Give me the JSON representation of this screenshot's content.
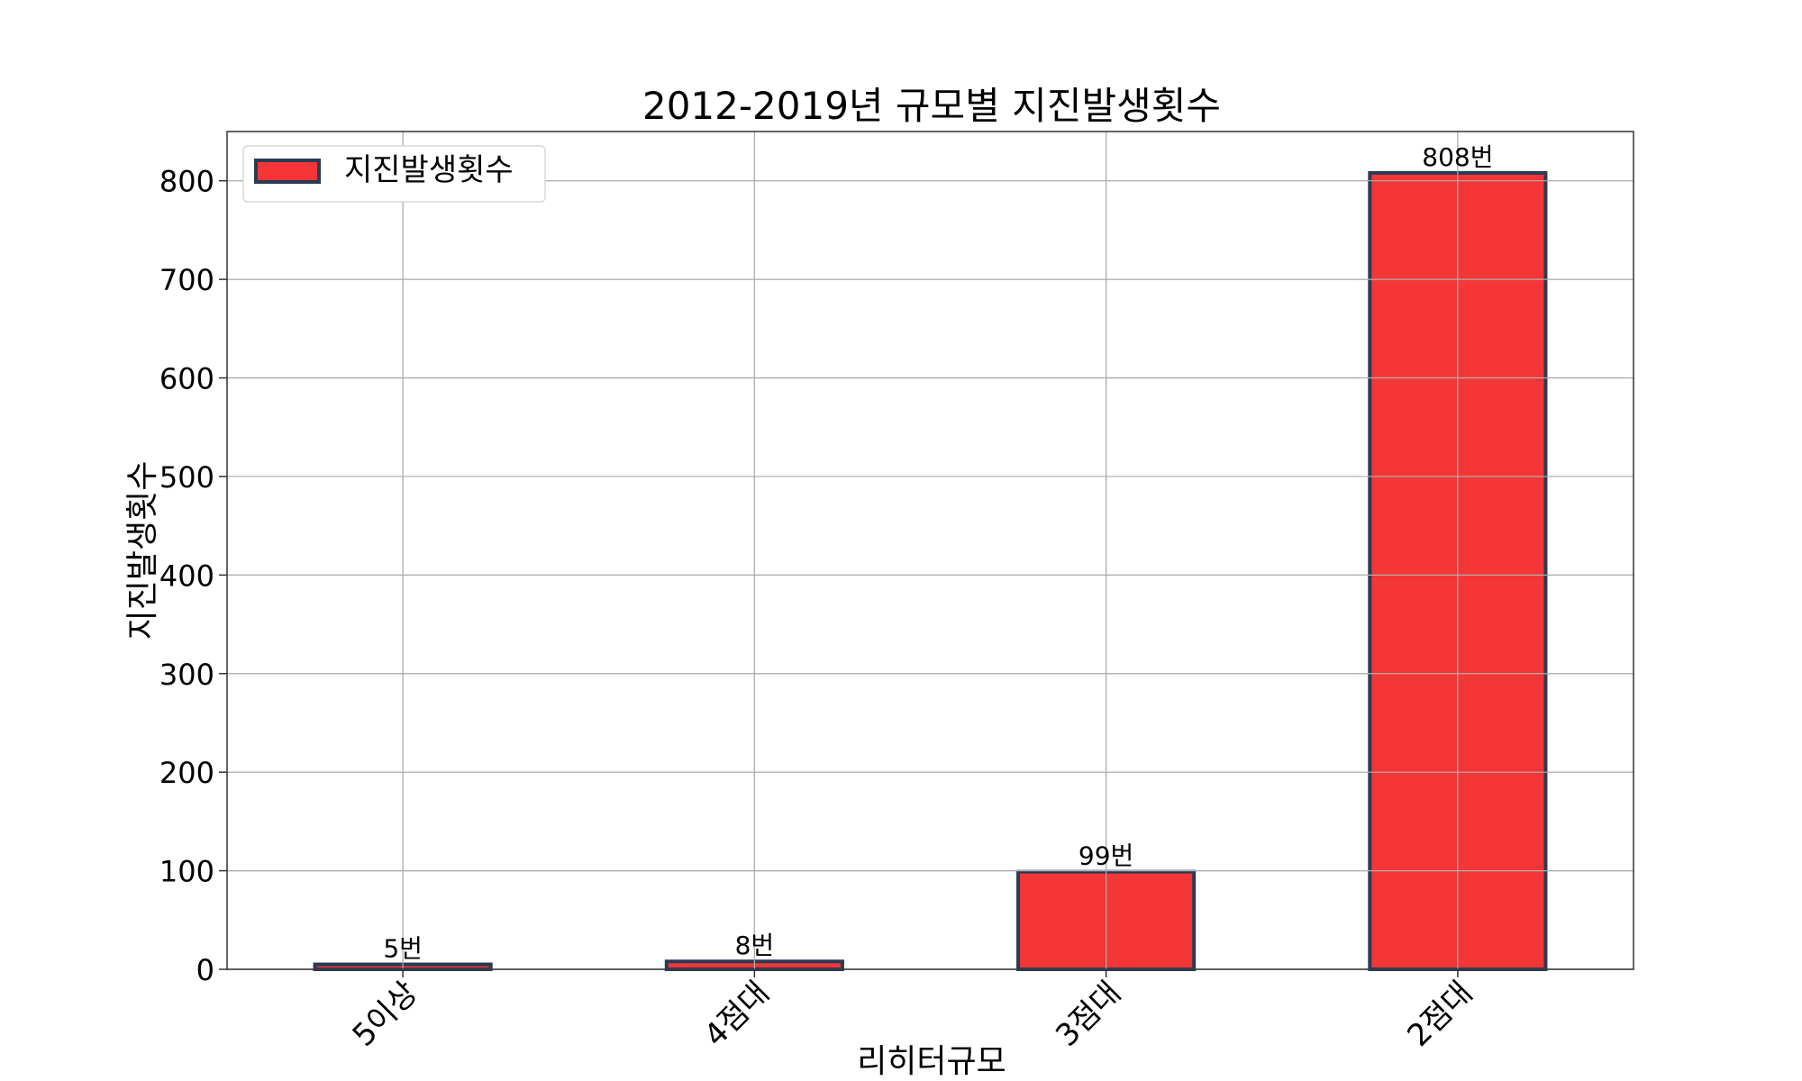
{
  "chart_data": {
    "type": "bar",
    "title": "2012-2019년 규모별 지진발생횟수",
    "xlabel": "리히터규모",
    "ylabel": "지진발생횟수",
    "categories": [
      "5이상",
      "4점대",
      "3점대",
      "2점대"
    ],
    "series": [
      {
        "name": "지진발생횟수",
        "values": [
          5,
          8,
          99,
          808
        ],
        "data_labels": [
          "5번",
          "8번",
          "99번",
          "808번"
        ]
      }
    ],
    "ylim": [
      0,
      850
    ],
    "yticks": [
      0,
      100,
      200,
      300,
      400,
      500,
      600,
      700,
      800
    ],
    "grid": true,
    "legend_position": "top-left",
    "colors": {
      "bar_fill": "#f43636",
      "bar_edge": "#2b3a55",
      "grid": "#b0b0b0"
    }
  }
}
